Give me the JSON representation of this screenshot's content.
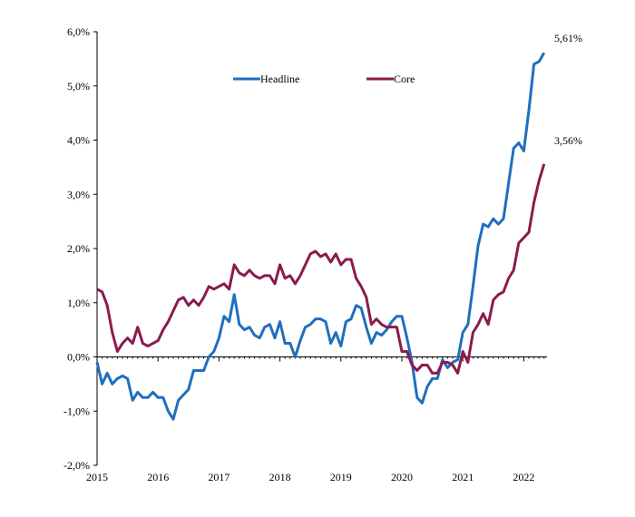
{
  "chart_data": {
    "type": "line",
    "x_start": "2015-01",
    "y_unit": "%",
    "ylim": [
      -2.0,
      6.0
    ],
    "y_ticks": [
      6.0,
      5.0,
      4.0,
      3.0,
      2.0,
      1.0,
      0.0,
      -1.0,
      -2.0
    ],
    "y_tick_labels": [
      "6,0%",
      "5,0%",
      "4,0%",
      "3,0%",
      "2,0%",
      "1,0%",
      "0,0%",
      "-1,0%",
      "-2,0%"
    ],
    "x_tick_labels": [
      "2015",
      "2016",
      "2017",
      "2018",
      "2019",
      "2020",
      "2021",
      "2022"
    ],
    "grid": false,
    "legend_position": "top-center",
    "series": [
      {
        "name": "Headline",
        "color": "#1F6FBF",
        "end_label": "5,61%",
        "values": [
          -0.1,
          -0.5,
          -0.3,
          -0.5,
          -0.4,
          -0.35,
          -0.4,
          -0.8,
          -0.65,
          -0.75,
          -0.75,
          -0.65,
          -0.75,
          -0.75,
          -1.0,
          -1.15,
          -0.8,
          -0.7,
          -0.6,
          -0.25,
          -0.25,
          -0.25,
          0.0,
          0.1,
          0.35,
          0.75,
          0.65,
          1.15,
          0.6,
          0.5,
          0.55,
          0.4,
          0.35,
          0.55,
          0.6,
          0.35,
          0.65,
          0.25,
          0.25,
          0.0,
          0.3,
          0.55,
          0.6,
          0.7,
          0.7,
          0.65,
          0.25,
          0.45,
          0.2,
          0.65,
          0.7,
          0.95,
          0.9,
          0.55,
          0.25,
          0.45,
          0.4,
          0.5,
          0.65,
          0.75,
          0.75,
          0.35,
          -0.1,
          -0.75,
          -0.85,
          -0.55,
          -0.4,
          -0.4,
          -0.05,
          -0.2,
          -0.1,
          -0.05,
          0.45,
          0.6,
          1.3,
          2.05,
          2.45,
          2.4,
          2.55,
          2.45,
          2.55,
          3.2,
          3.85,
          3.95,
          3.8,
          4.55,
          5.4,
          5.45,
          5.61
        ]
      },
      {
        "name": "Core",
        "color": "#8B1A4E",
        "end_label": "3,56%",
        "values": [
          1.25,
          1.2,
          0.95,
          0.45,
          0.1,
          0.25,
          0.35,
          0.25,
          0.55,
          0.25,
          0.2,
          0.25,
          0.3,
          0.5,
          0.65,
          0.85,
          1.05,
          1.1,
          0.95,
          1.05,
          0.95,
          1.1,
          1.3,
          1.25,
          1.3,
          1.35,
          1.25,
          1.7,
          1.55,
          1.5,
          1.6,
          1.5,
          1.45,
          1.5,
          1.5,
          1.35,
          1.7,
          1.45,
          1.5,
          1.35,
          1.5,
          1.7,
          1.9,
          1.95,
          1.85,
          1.9,
          1.75,
          1.9,
          1.7,
          1.8,
          1.8,
          1.45,
          1.3,
          1.1,
          0.6,
          0.7,
          0.6,
          0.55,
          0.55,
          0.55,
          0.1,
          0.1,
          -0.15,
          -0.25,
          -0.15,
          -0.15,
          -0.3,
          -0.3,
          -0.1,
          -0.1,
          -0.15,
          -0.3,
          0.1,
          -0.1,
          0.45,
          0.6,
          0.8,
          0.6,
          1.05,
          1.15,
          1.2,
          1.45,
          1.6,
          2.1,
          2.2,
          2.3,
          2.85,
          3.25,
          3.56
        ]
      }
    ]
  }
}
